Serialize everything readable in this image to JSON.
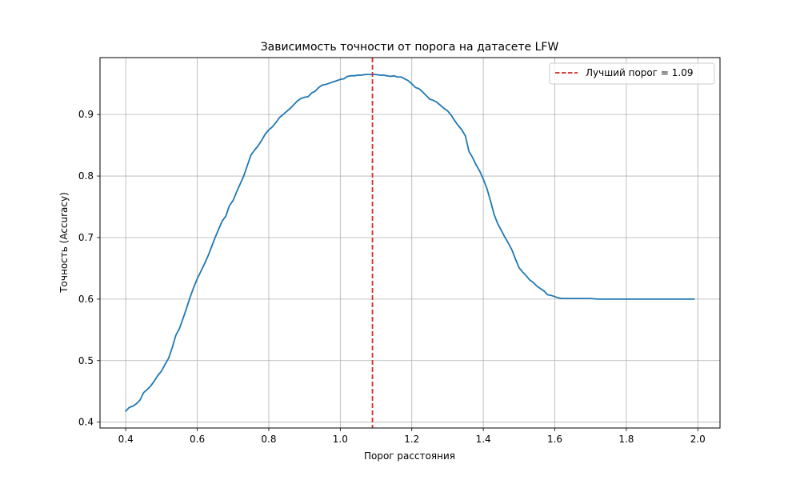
{
  "chart_data": {
    "type": "line",
    "title": "Зависимость точности от порога на датасете LFW",
    "xlabel": "Порог расстояния",
    "ylabel": "Точность (Accuracy)",
    "xlim": [
      0.328,
      2.062
    ],
    "ylim": [
      0.3905,
      0.9925
    ],
    "x_ticks": [
      0.4,
      0.6,
      0.8,
      1.0,
      1.2,
      1.4,
      1.6,
      1.8,
      2.0
    ],
    "x_tick_labels": [
      "0.4",
      "0.6",
      "0.8",
      "1.0",
      "1.2",
      "1.4",
      "1.6",
      "1.8",
      "2.0"
    ],
    "y_ticks": [
      0.4,
      0.5,
      0.6,
      0.7,
      0.8,
      0.9
    ],
    "y_tick_labels": [
      "0.4",
      "0.5",
      "0.6",
      "0.7",
      "0.8",
      "0.9"
    ],
    "grid": true,
    "legend_position": "top-right",
    "series": [
      {
        "color": "#1f77b4",
        "style": "solid",
        "points": [
          [
            0.4,
            0.418
          ],
          [
            0.41,
            0.424
          ],
          [
            0.42,
            0.426
          ],
          [
            0.43,
            0.43
          ],
          [
            0.44,
            0.436
          ],
          [
            0.45,
            0.448
          ],
          [
            0.46,
            0.453
          ],
          [
            0.47,
            0.459
          ],
          [
            0.48,
            0.467
          ],
          [
            0.49,
            0.476
          ],
          [
            0.5,
            0.483
          ],
          [
            0.51,
            0.494
          ],
          [
            0.52,
            0.504
          ],
          [
            0.53,
            0.521
          ],
          [
            0.54,
            0.541
          ],
          [
            0.55,
            0.552
          ],
          [
            0.56,
            0.568
          ],
          [
            0.57,
            0.585
          ],
          [
            0.58,
            0.603
          ],
          [
            0.59,
            0.619
          ],
          [
            0.6,
            0.633
          ],
          [
            0.61,
            0.645
          ],
          [
            0.62,
            0.657
          ],
          [
            0.63,
            0.67
          ],
          [
            0.64,
            0.685
          ],
          [
            0.65,
            0.7
          ],
          [
            0.66,
            0.714
          ],
          [
            0.67,
            0.727
          ],
          [
            0.68,
            0.735
          ],
          [
            0.69,
            0.752
          ],
          [
            0.7,
            0.76
          ],
          [
            0.71,
            0.774
          ],
          [
            0.72,
            0.787
          ],
          [
            0.73,
            0.8
          ],
          [
            0.74,
            0.817
          ],
          [
            0.75,
            0.834
          ],
          [
            0.76,
            0.842
          ],
          [
            0.77,
            0.849
          ],
          [
            0.78,
            0.858
          ],
          [
            0.79,
            0.868
          ],
          [
            0.8,
            0.875
          ],
          [
            0.81,
            0.88
          ],
          [
            0.82,
            0.887
          ],
          [
            0.83,
            0.895
          ],
          [
            0.84,
            0.9
          ],
          [
            0.85,
            0.905
          ],
          [
            0.86,
            0.91
          ],
          [
            0.87,
            0.916
          ],
          [
            0.88,
            0.922
          ],
          [
            0.89,
            0.926
          ],
          [
            0.9,
            0.928
          ],
          [
            0.91,
            0.929
          ],
          [
            0.92,
            0.935
          ],
          [
            0.93,
            0.938
          ],
          [
            0.94,
            0.944
          ],
          [
            0.95,
            0.948
          ],
          [
            0.96,
            0.949
          ],
          [
            0.97,
            0.951
          ],
          [
            0.98,
            0.953
          ],
          [
            0.99,
            0.955
          ],
          [
            1.0,
            0.957
          ],
          [
            1.01,
            0.958
          ],
          [
            1.02,
            0.962
          ],
          [
            1.03,
            0.963
          ],
          [
            1.04,
            0.963
          ],
          [
            1.05,
            0.964
          ],
          [
            1.06,
            0.964
          ],
          [
            1.07,
            0.965
          ],
          [
            1.08,
            0.965
          ],
          [
            1.09,
            0.965
          ],
          [
            1.1,
            0.965
          ],
          [
            1.11,
            0.964
          ],
          [
            1.12,
            0.964
          ],
          [
            1.13,
            0.963
          ],
          [
            1.14,
            0.962
          ],
          [
            1.15,
            0.963
          ],
          [
            1.16,
            0.961
          ],
          [
            1.17,
            0.961
          ],
          [
            1.18,
            0.958
          ],
          [
            1.19,
            0.955
          ],
          [
            1.2,
            0.95
          ],
          [
            1.21,
            0.944
          ],
          [
            1.22,
            0.942
          ],
          [
            1.23,
            0.937
          ],
          [
            1.24,
            0.931
          ],
          [
            1.25,
            0.925
          ],
          [
            1.26,
            0.923
          ],
          [
            1.27,
            0.92
          ],
          [
            1.28,
            0.915
          ],
          [
            1.29,
            0.91
          ],
          [
            1.3,
            0.906
          ],
          [
            1.31,
            0.899
          ],
          [
            1.32,
            0.89
          ],
          [
            1.33,
            0.882
          ],
          [
            1.34,
            0.875
          ],
          [
            1.35,
            0.865
          ],
          [
            1.36,
            0.84
          ],
          [
            1.37,
            0.83
          ],
          [
            1.38,
            0.818
          ],
          [
            1.39,
            0.808
          ],
          [
            1.4,
            0.795
          ],
          [
            1.41,
            0.78
          ],
          [
            1.42,
            0.76
          ],
          [
            1.43,
            0.738
          ],
          [
            1.44,
            0.723
          ],
          [
            1.45,
            0.712
          ],
          [
            1.46,
            0.701
          ],
          [
            1.47,
            0.691
          ],
          [
            1.48,
            0.68
          ],
          [
            1.49,
            0.665
          ],
          [
            1.5,
            0.651
          ],
          [
            1.51,
            0.644
          ],
          [
            1.52,
            0.638
          ],
          [
            1.53,
            0.631
          ],
          [
            1.54,
            0.627
          ],
          [
            1.55,
            0.621
          ],
          [
            1.56,
            0.617
          ],
          [
            1.57,
            0.613
          ],
          [
            1.58,
            0.607
          ],
          [
            1.59,
            0.606
          ],
          [
            1.6,
            0.604
          ],
          [
            1.61,
            0.602
          ],
          [
            1.62,
            0.601
          ],
          [
            1.63,
            0.601
          ],
          [
            1.64,
            0.601
          ],
          [
            1.66,
            0.601
          ],
          [
            1.68,
            0.601
          ],
          [
            1.7,
            0.601
          ],
          [
            1.72,
            0.6
          ],
          [
            1.76,
            0.6
          ],
          [
            1.8,
            0.6
          ],
          [
            1.85,
            0.6
          ],
          [
            1.9,
            0.6
          ],
          [
            1.95,
            0.6
          ],
          [
            1.99,
            0.6
          ]
        ]
      }
    ],
    "threshold_line": {
      "x": 1.09,
      "color": "#d62728",
      "style": "dashed",
      "legend_label": "Лучший порог = 1.09"
    }
  }
}
